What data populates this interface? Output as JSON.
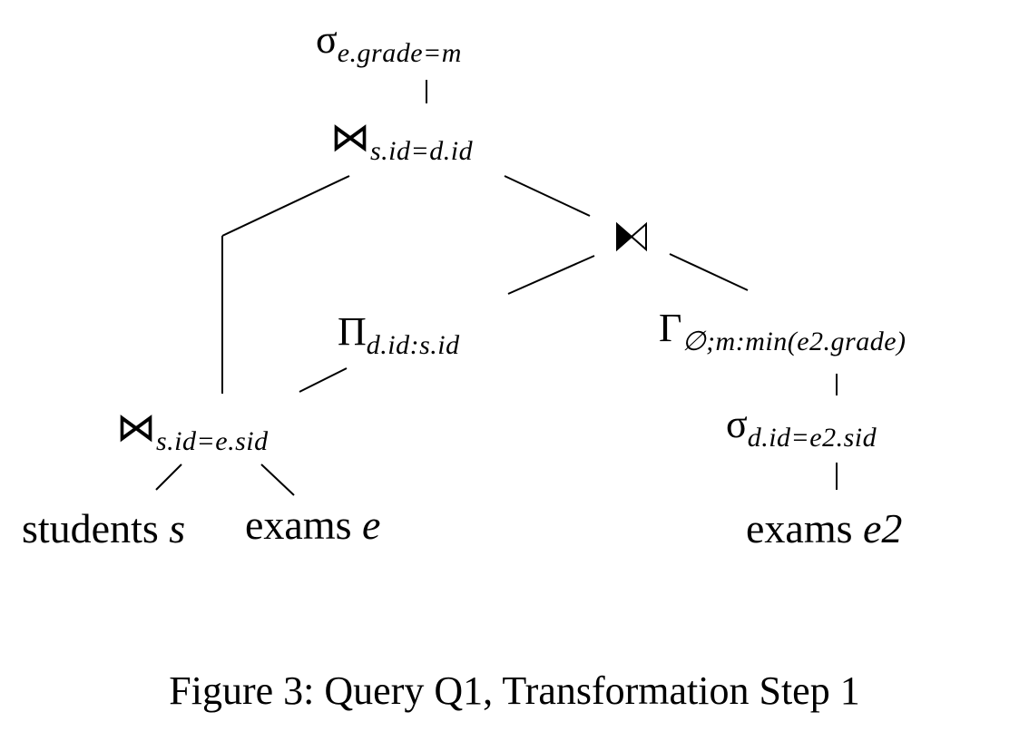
{
  "nodes": {
    "select_top": {
      "symbol": "σ",
      "subscript": "e.grade=m"
    },
    "join_top": {
      "symbol": "⋈",
      "subscript": "s.id=d.id"
    },
    "semijoin": {
      "symbol": "⋉"
    },
    "project": {
      "symbol": "Π",
      "subscript": "d.id:s.id"
    },
    "group": {
      "symbol": "Γ",
      "subscript": "∅;m:min(e2.grade)"
    },
    "join_bottom": {
      "symbol": "⋈",
      "subscript": "s.id=e.sid"
    },
    "select_bottom": {
      "symbol": "σ",
      "subscript": "d.id=e2.sid"
    }
  },
  "leaves": {
    "students": {
      "name": "students",
      "alias": "s"
    },
    "exams_e": {
      "name": "exams",
      "alias": "e"
    },
    "exams_e2": {
      "name": "exams",
      "alias": "e2"
    }
  },
  "caption": "Figure 3: Query Q1, Transformation Step 1"
}
